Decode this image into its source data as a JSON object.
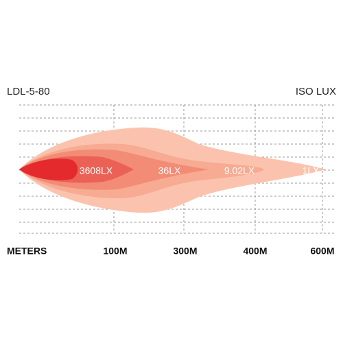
{
  "header": {
    "model": "LDL-5-80",
    "title": "ISO LUX"
  },
  "axis": {
    "label": "METERS",
    "ticks": [
      "100M",
      "300M",
      "400M",
      "600M"
    ]
  },
  "zones": [
    "3608LX",
    "36LX",
    "9.02LX",
    "1LX"
  ]
}
